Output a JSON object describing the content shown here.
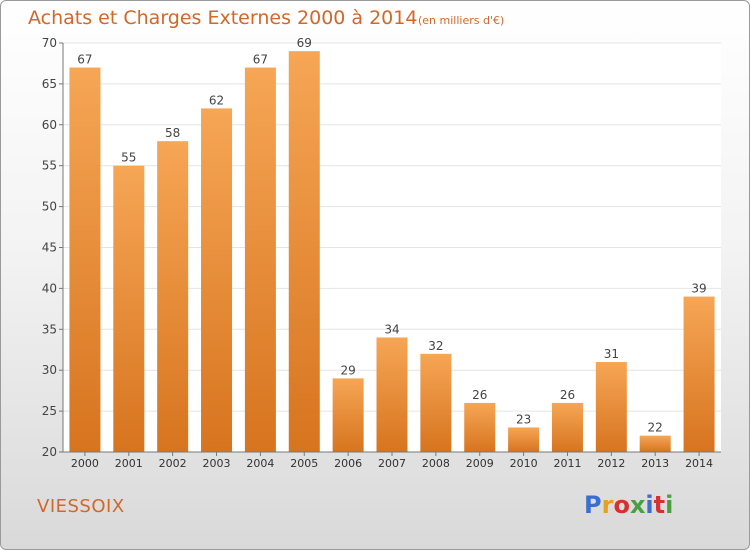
{
  "header": {
    "title": "Achats et Charges Externes 2000 à 2014",
    "subtitle": "(en milliers d'€)"
  },
  "commune": "VIESSOIX",
  "brand": {
    "name": "Proxiti",
    "letter_colors": [
      "#3a6fd0",
      "#e8a020",
      "#d83030",
      "#4aa040",
      "#3a6fd0",
      "#d83030",
      "#4aa040"
    ]
  },
  "colors": {
    "bar_top": "#f6a655",
    "bar_bottom": "#d7741f",
    "title": "#d2672a",
    "grid": "#e4e4e4",
    "axis": "#777777"
  },
  "chart_data": {
    "type": "bar",
    "title": "Achats et Charges Externes 2000 à 2014",
    "subtitle": "(en milliers d'€)",
    "xlabel": "",
    "ylabel": "",
    "categories": [
      "2000",
      "2001",
      "2002",
      "2003",
      "2004",
      "2005",
      "2006",
      "2007",
      "2008",
      "2009",
      "2010",
      "2011",
      "2012",
      "2013",
      "2014"
    ],
    "values": [
      67,
      55,
      58,
      62,
      67,
      69,
      29,
      34,
      32,
      26,
      23,
      26,
      31,
      22,
      39
    ],
    "ylim": [
      20,
      70
    ],
    "yticks": [
      20,
      25,
      30,
      35,
      40,
      45,
      50,
      55,
      60,
      65,
      70
    ],
    "grid": true,
    "data_labels": true
  }
}
